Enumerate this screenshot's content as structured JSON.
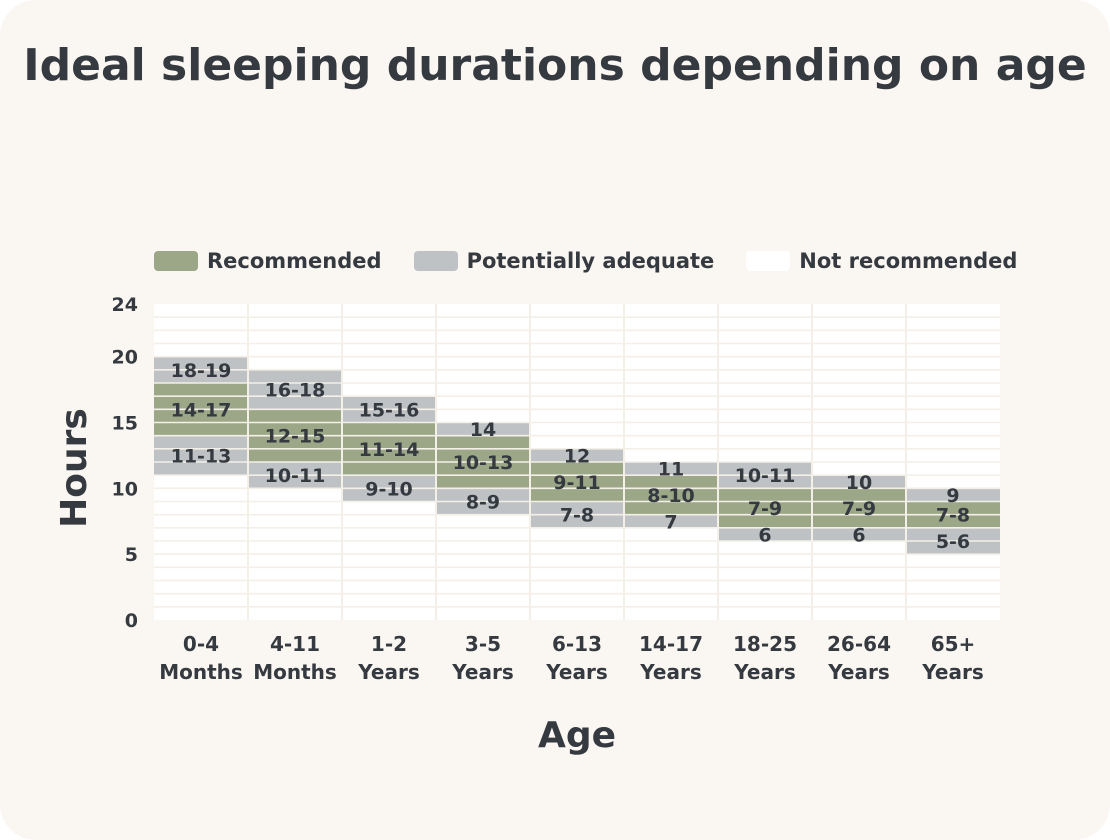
{
  "chart_data": {
    "type": "bar",
    "title": "Ideal sleeping durations depending on age",
    "xlabel": "Age",
    "ylabel": "Hours",
    "ylim": [
      0,
      24
    ],
    "yticks": [
      0,
      5,
      10,
      15,
      20,
      24
    ],
    "grid": true,
    "legend_position": "top",
    "legend": [
      {
        "key": "recommended",
        "label": "Recommended",
        "color": "#9ba787"
      },
      {
        "key": "adequate",
        "label": "Potentially adequate",
        "color": "#bfc2c5"
      },
      {
        "key": "not",
        "label": "Not recommended",
        "color": "#ffffff"
      }
    ],
    "categories": [
      {
        "line1": "0-4",
        "line2": "Months",
        "segments": [
          {
            "type": "adequate",
            "from": 11,
            "to": 14,
            "label": "11-13"
          },
          {
            "type": "recommended",
            "from": 14,
            "to": 18,
            "label": "14-17"
          },
          {
            "type": "adequate",
            "from": 18,
            "to": 20,
            "label": "18-19"
          }
        ]
      },
      {
        "line1": "4-11",
        "line2": "Months",
        "segments": [
          {
            "type": "adequate",
            "from": 10,
            "to": 12,
            "label": "10-11"
          },
          {
            "type": "recommended",
            "from": 12,
            "to": 16,
            "label": "12-15"
          },
          {
            "type": "adequate",
            "from": 16,
            "to": 19,
            "label": "16-18"
          }
        ]
      },
      {
        "line1": "1-2",
        "line2": "Years",
        "segments": [
          {
            "type": "adequate",
            "from": 9,
            "to": 11,
            "label": "9-10"
          },
          {
            "type": "recommended",
            "from": 11,
            "to": 15,
            "label": "11-14"
          },
          {
            "type": "adequate",
            "from": 15,
            "to": 17,
            "label": "15-16"
          }
        ]
      },
      {
        "line1": "3-5",
        "line2": "Years",
        "segments": [
          {
            "type": "adequate",
            "from": 8,
            "to": 10,
            "label": "8-9"
          },
          {
            "type": "recommended",
            "from": 10,
            "to": 14,
            "label": "10-13"
          },
          {
            "type": "adequate",
            "from": 14,
            "to": 15,
            "label": "14"
          }
        ]
      },
      {
        "line1": "6-13",
        "line2": "Years",
        "segments": [
          {
            "type": "adequate",
            "from": 7,
            "to": 9,
            "label": "7-8"
          },
          {
            "type": "recommended",
            "from": 9,
            "to": 12,
            "label": "9-11"
          },
          {
            "type": "adequate",
            "from": 12,
            "to": 13,
            "label": "12"
          }
        ]
      },
      {
        "line1": "14-17",
        "line2": "Years",
        "segments": [
          {
            "type": "adequate",
            "from": 7,
            "to": 8,
            "label": "7"
          },
          {
            "type": "recommended",
            "from": 8,
            "to": 11,
            "label": "8-10"
          },
          {
            "type": "adequate",
            "from": 11,
            "to": 12,
            "label": "11"
          }
        ]
      },
      {
        "line1": "18-25",
        "line2": "Years",
        "segments": [
          {
            "type": "adequate",
            "from": 6,
            "to": 7,
            "label": "6"
          },
          {
            "type": "recommended",
            "from": 7,
            "to": 10,
            "label": "7-9"
          },
          {
            "type": "adequate",
            "from": 10,
            "to": 12,
            "label": "10-11"
          }
        ]
      },
      {
        "line1": "26-64",
        "line2": "Years",
        "segments": [
          {
            "type": "adequate",
            "from": 6,
            "to": 7,
            "label": "6"
          },
          {
            "type": "recommended",
            "from": 7,
            "to": 10,
            "label": "7-9"
          },
          {
            "type": "adequate",
            "from": 10,
            "to": 11,
            "label": "10"
          }
        ]
      },
      {
        "line1": "65+",
        "line2": "Years",
        "segments": [
          {
            "type": "adequate",
            "from": 5,
            "to": 7,
            "label": "5-6"
          },
          {
            "type": "recommended",
            "from": 7,
            "to": 9,
            "label": "7-8"
          },
          {
            "type": "adequate",
            "from": 9,
            "to": 10,
            "label": "9"
          }
        ]
      }
    ]
  }
}
